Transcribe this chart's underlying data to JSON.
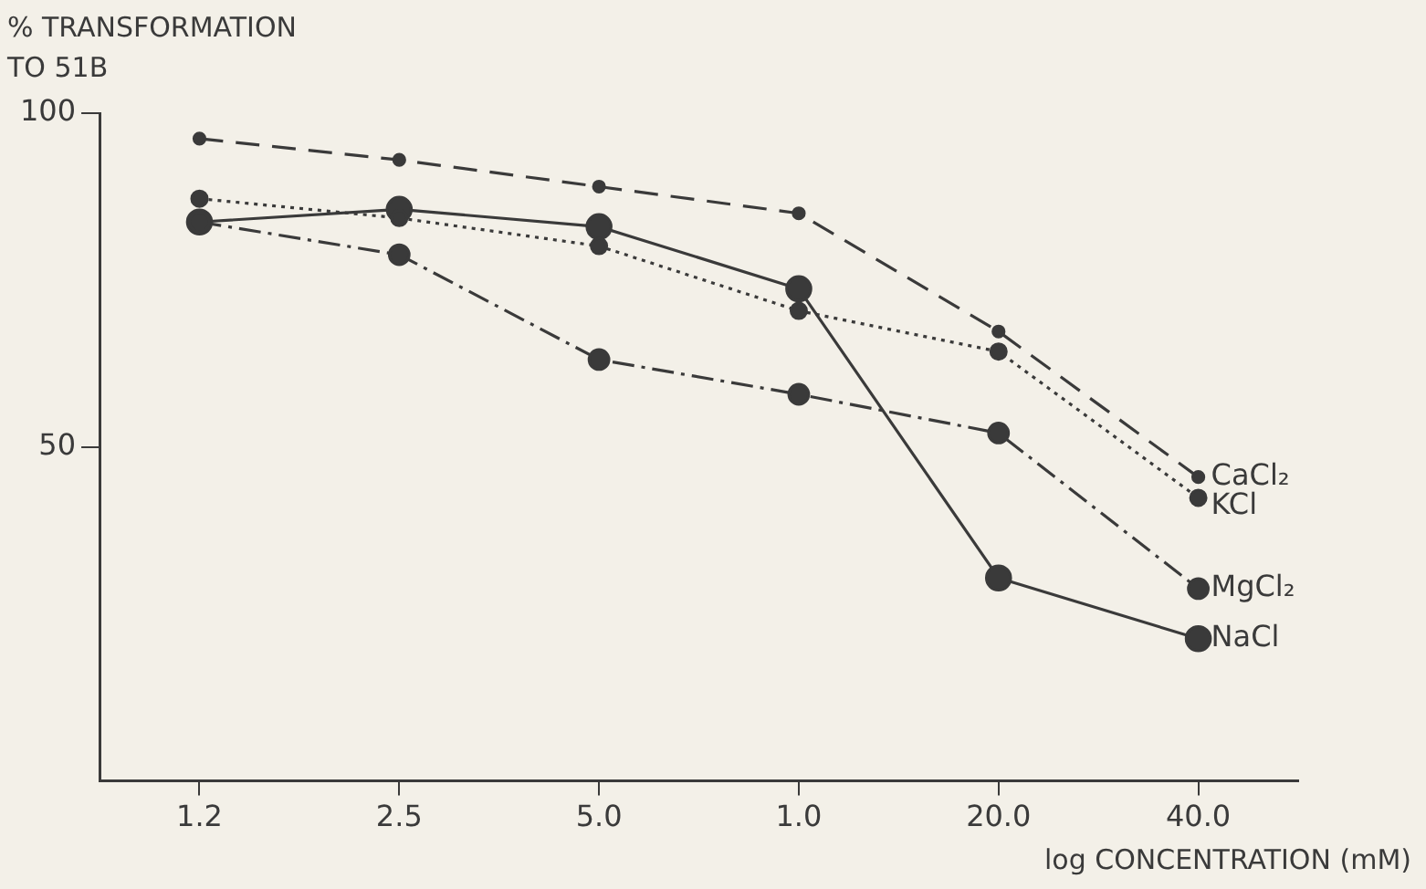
{
  "chart_data": {
    "type": "line",
    "ylabel": "% TRANSFORMATION TO 51B",
    "xlabel": "log CONCENTRATION (mM)",
    "categories": [
      "1.2",
      "2.5",
      "5.0",
      "1.0",
      "20.0",
      "40.0"
    ],
    "ylim": [
      0,
      100
    ],
    "yticks": [
      50,
      100
    ],
    "grid": false,
    "legend": false,
    "marker": "circle",
    "series": [
      {
        "name": "CaCl₂",
        "color": "#3a3a3a",
        "line_style": "dashed",
        "values": [
          96.2,
          93.0,
          89.0,
          85.0,
          67.3,
          45.5
        ]
      },
      {
        "name": "KCl",
        "color": "#3a3a3a",
        "line_style": "dotted",
        "values": [
          87.2,
          84.3,
          80.1,
          70.4,
          64.3,
          42.4
        ]
      },
      {
        "name": "MgCl₂",
        "color": "#3a3a3a",
        "line_style": "dashdot",
        "values": [
          83.7,
          78.8,
          63.1,
          57.9,
          52.1,
          28.8
        ]
      },
      {
        "name": "NaCl",
        "color": "#3a3a3a",
        "line_style": "solid",
        "values": [
          83.7,
          85.6,
          83.0,
          73.7,
          30.4,
          21.3
        ]
      }
    ]
  }
}
